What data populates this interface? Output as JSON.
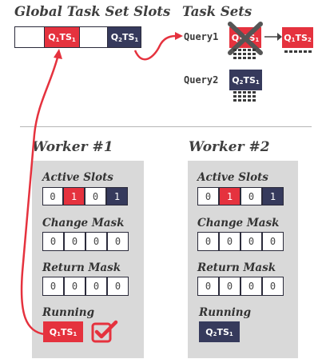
{
  "global_slots": {
    "title": "Global Task Set Slots",
    "slots": [
      {
        "q": "",
        "ts": "",
        "state": "empty"
      },
      {
        "q": "1",
        "ts": "1",
        "state": "red"
      },
      {
        "q": "",
        "ts": "",
        "state": "empty"
      },
      {
        "q": "2",
        "ts": "1",
        "state": "navy"
      }
    ]
  },
  "task_sets": {
    "title": "Task Sets",
    "queries": [
      {
        "label": "Query1",
        "sets": [
          {
            "q": "1",
            "ts": "1",
            "state": "red",
            "crossed": true
          },
          {
            "q": "1",
            "ts": "2",
            "state": "red",
            "crossed": false
          }
        ]
      },
      {
        "label": "Query2",
        "sets": [
          {
            "q": "2",
            "ts": "1",
            "state": "navy",
            "crossed": false
          }
        ]
      }
    ]
  },
  "workers": [
    {
      "title": "Worker #1",
      "active_slots_label": "Active Slots",
      "active_slots": [
        "0",
        "1",
        "0",
        "1"
      ],
      "change_mask_label": "Change Mask",
      "change_mask": [
        "0",
        "0",
        "0",
        "0"
      ],
      "return_mask_label": "Return Mask",
      "return_mask": [
        "0",
        "0",
        "0",
        "0"
      ],
      "running_label": "Running",
      "running": {
        "q": "1",
        "ts": "1",
        "state": "red",
        "completed": true
      }
    },
    {
      "title": "Worker #2",
      "active_slots_label": "Active Slots",
      "active_slots": [
        "0",
        "1",
        "0",
        "1"
      ],
      "change_mask_label": "Change Mask",
      "change_mask": [
        "0",
        "0",
        "0",
        "0"
      ],
      "return_mask_label": "Return Mask",
      "return_mask": [
        "0",
        "0",
        "0",
        "0"
      ],
      "running_label": "Running",
      "running": {
        "q": "2",
        "ts": "1",
        "state": "navy",
        "completed": false
      }
    }
  ],
  "colors": {
    "red": "#e5323e",
    "navy": "#363a5c",
    "panel": "#d9d9d9",
    "gray_text": "#3f3f3f"
  }
}
